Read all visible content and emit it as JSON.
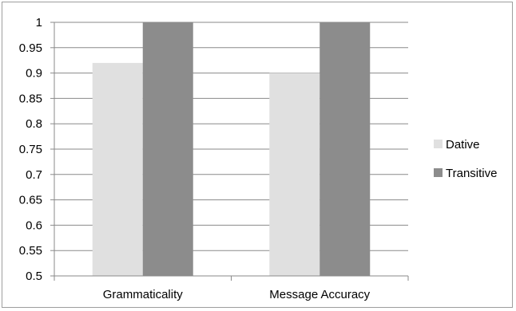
{
  "chart_data": {
    "type": "bar",
    "categories": [
      "Grammaticality",
      "Message Accuracy"
    ],
    "series": [
      {
        "name": "Dative",
        "values": [
          0.92,
          0.9
        ],
        "color": "#e0e0e0"
      },
      {
        "name": "Transitive",
        "values": [
          1.0,
          1.0
        ],
        "color": "#8c8c8c"
      }
    ],
    "title": "",
    "xlabel": "",
    "ylabel": "",
    "ylim": [
      0.5,
      1.0
    ],
    "yticks": [
      "0.5",
      "0.55",
      "0.6",
      "0.65",
      "0.7",
      "0.75",
      "0.8",
      "0.85",
      "0.9",
      "0.95",
      "1"
    ],
    "grid": true,
    "legend_position": "right"
  }
}
